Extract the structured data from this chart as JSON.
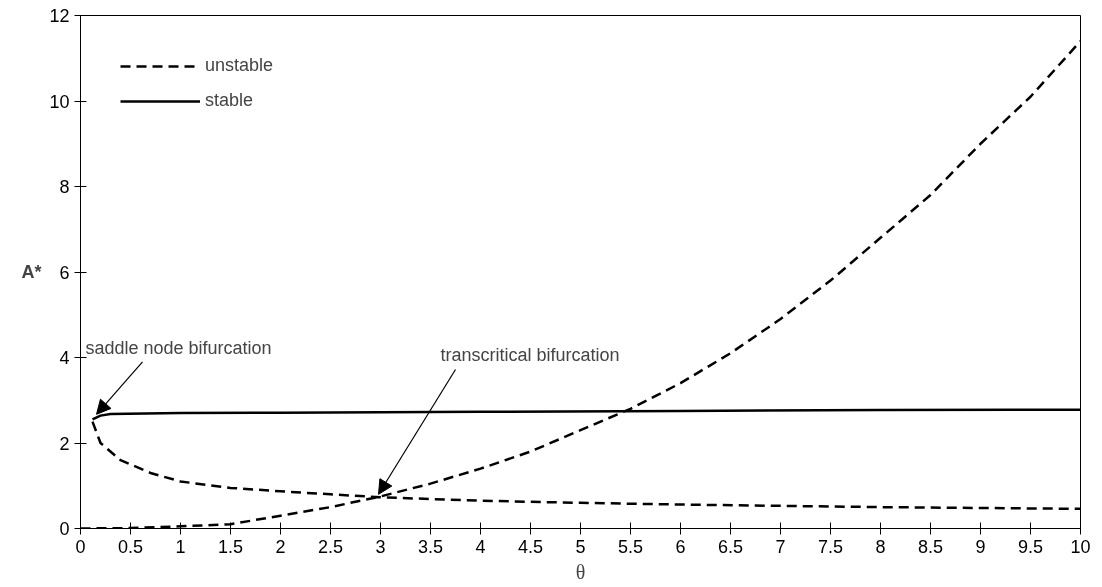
{
  "chart_data": {
    "type": "line",
    "xlabel": "θ",
    "ylabel": "A*",
    "xlim": [
      0,
      10
    ],
    "ylim": [
      0,
      12
    ],
    "xticks": [
      0,
      0.5,
      1,
      1.5,
      2,
      2.5,
      3,
      3.5,
      4,
      4.5,
      5,
      5.5,
      6,
      6.5,
      7,
      7.5,
      8,
      8.5,
      9,
      9.5,
      10
    ],
    "yticks": [
      0,
      2,
      4,
      6,
      8,
      10,
      12
    ],
    "grid": false,
    "legend": "top left",
    "marker": "none",
    "series": [
      {
        "name": "unstable",
        "color": "#000000",
        "line_style": "dashed",
        "x": [
          0.12,
          0.2,
          0.4,
          0.7,
          1,
          1.5,
          2,
          2.5,
          3,
          4,
          5,
          6,
          7,
          8,
          9,
          10,
          null,
          0,
          0.5,
          1,
          1.5,
          2,
          2.5,
          3,
          3.5,
          4,
          4.5,
          5,
          5.5,
          6,
          6.5,
          7,
          7.5,
          8,
          8.5,
          9,
          9.5,
          10
        ],
        "values": [
          2.5,
          2.0,
          1.6,
          1.3,
          1.1,
          0.95,
          0.87,
          0.8,
          0.73,
          0.65,
          0.6,
          0.56,
          0.53,
          0.5,
          0.48,
          0.46,
          null,
          0,
          0.01,
          0.05,
          0.1,
          0.3,
          0.5,
          0.75,
          1.05,
          1.4,
          1.8,
          2.3,
          2.8,
          3.4,
          4.1,
          4.9,
          5.8,
          6.8,
          7.8,
          9.0,
          10.1,
          11.4
        ]
      },
      {
        "name": "stable",
        "color": "#000000",
        "line_style": "solid",
        "x": [
          0.12,
          0.2,
          0.3,
          1,
          2,
          4,
          6,
          8,
          10
        ],
        "values": [
          2.55,
          2.64,
          2.68,
          2.7,
          2.71,
          2.73,
          2.75,
          2.77,
          2.78
        ]
      }
    ],
    "annotations": [
      {
        "text": "saddle node bifurcation",
        "x": 0.12,
        "y": 2.55
      },
      {
        "text": "transcritical bifurcation",
        "x": 2.95,
        "y": 0.72
      }
    ]
  }
}
